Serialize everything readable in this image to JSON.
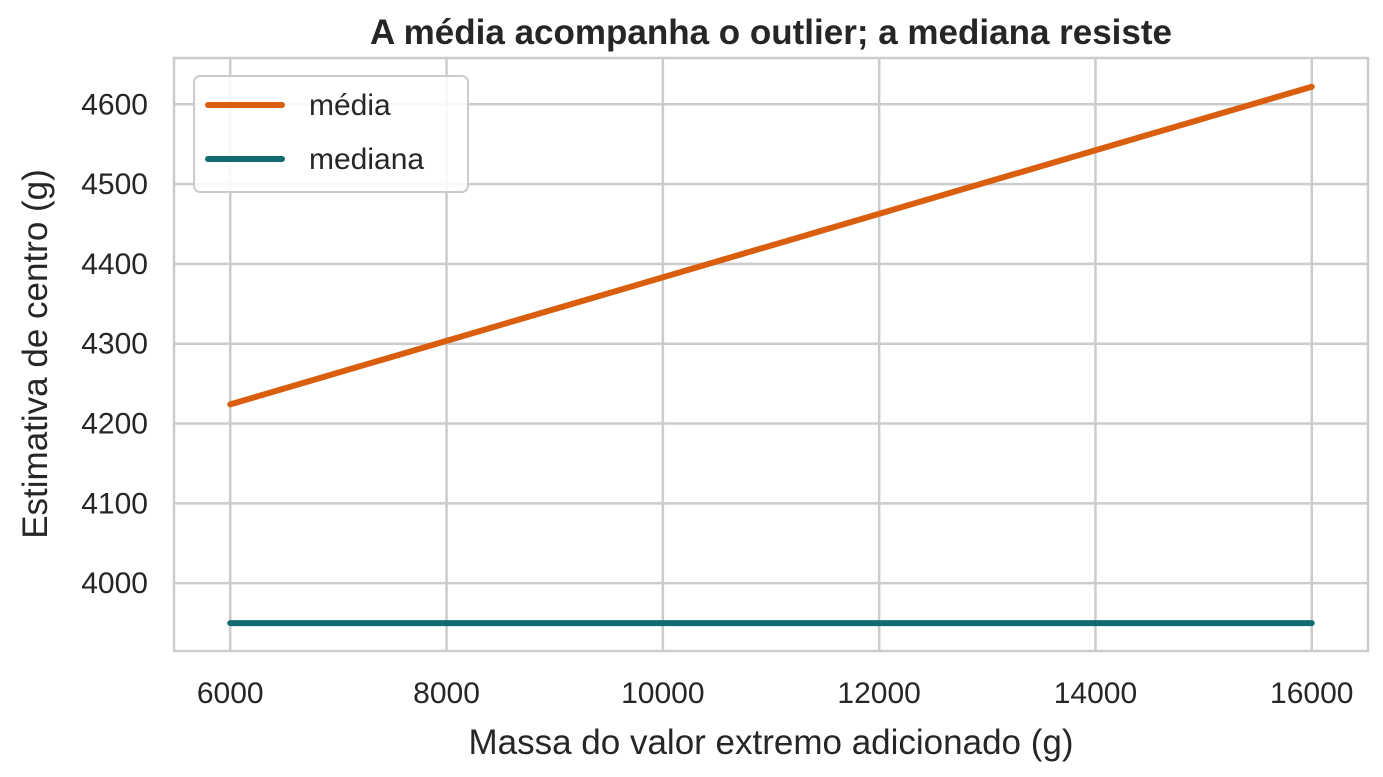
{
  "chart_data": {
    "type": "line",
    "title": "A média acompanha o outlier; a mediana resiste",
    "xlabel": "Massa do valor extremo adicionado (g)",
    "ylabel": "Estimativa de centro (g)",
    "xlim": [
      5480,
      16520
    ],
    "ylim": [
      3915,
      4658
    ],
    "xticks": [
      6000,
      8000,
      10000,
      12000,
      14000,
      16000
    ],
    "yticks": [
      4000,
      4100,
      4200,
      4300,
      4400,
      4500,
      4600
    ],
    "grid": true,
    "legend_position": "upper-left",
    "series": [
      {
        "name": "média",
        "color": "#d95f0e",
        "x": [
          6000,
          16000
        ],
        "y": [
          4224,
          4622
        ]
      },
      {
        "name": "mediana",
        "color": "#126b70",
        "x": [
          6000,
          16000
        ],
        "y": [
          3950,
          3950
        ]
      }
    ]
  }
}
